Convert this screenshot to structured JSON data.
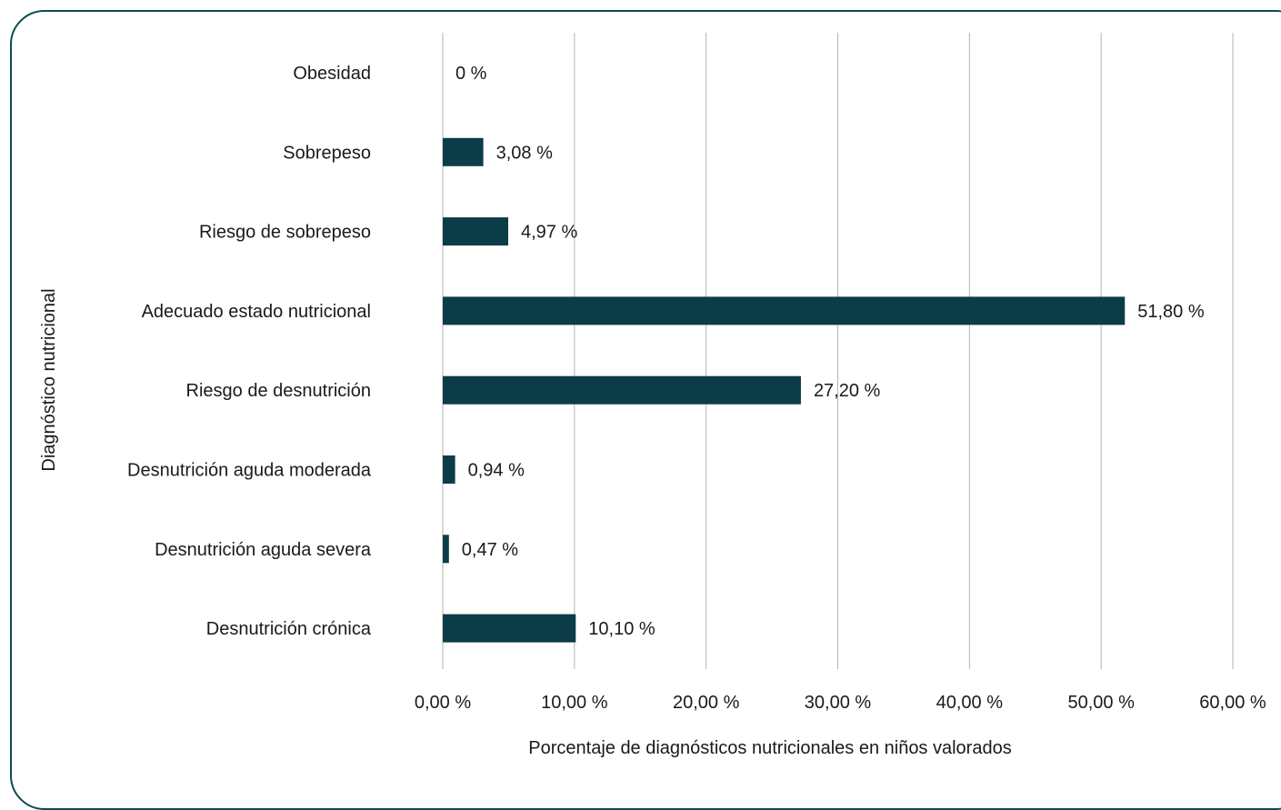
{
  "chart_data": {
    "type": "bar",
    "orientation": "horizontal",
    "categories": [
      "Obesidad",
      "Sobrepeso",
      "Riesgo de sobrepeso",
      "Adecuado estado nutricional",
      "Riesgo de desnutrición",
      "Desnutrición aguda moderada",
      "Desnutrición aguda severa",
      "Desnutrición crónica"
    ],
    "values": [
      0,
      3.08,
      4.97,
      51.8,
      27.2,
      0.94,
      0.47,
      10.1
    ],
    "data_labels": [
      "0 %",
      "3,08 %",
      "4,97 %",
      "51,80 %",
      "27,20 %",
      "0,94 %",
      "0,47 %",
      "10,10 %"
    ],
    "xlabel": "Porcentaje de diagnósticos nutricionales en niños valorados",
    "ylabel": "Diagnóstico nutricional",
    "xlim": [
      0,
      60
    ],
    "xticks": [
      0,
      10,
      20,
      30,
      40,
      50,
      60
    ],
    "xtick_labels": [
      "0,00 %",
      "10,00 %",
      "20,00 %",
      "30,00 %",
      "40,00 %",
      "50,00 %",
      "60,00 %"
    ],
    "grid": "vertical",
    "legend": "none",
    "bar_color": "#0d3c49",
    "frame_color": "#0d4a52",
    "gridline_color": "#b3b3b3"
  }
}
